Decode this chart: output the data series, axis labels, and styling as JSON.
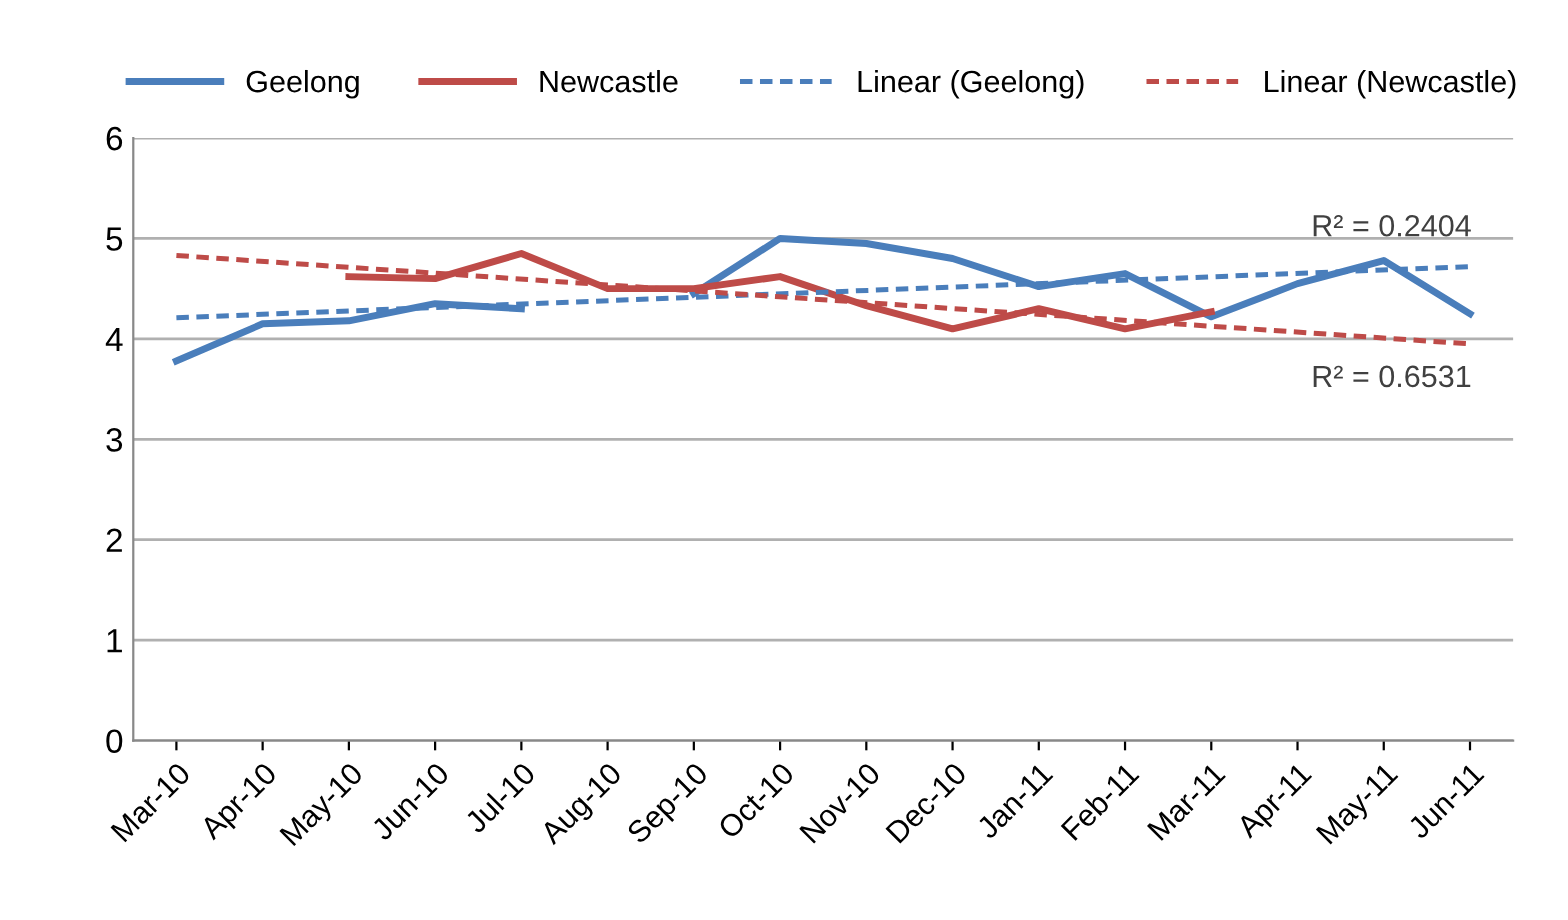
{
  "chart_data": {
    "type": "line",
    "categories": [
      "Mar-10",
      "Apr-10",
      "May-10",
      "Jun-10",
      "Jul-10",
      "Aug-10",
      "Sep-10",
      "Oct-10",
      "Nov-10",
      "Dec-10",
      "Jan-11",
      "Feb-11",
      "Mar-11",
      "Apr-11",
      "May-11",
      "Jun-11"
    ],
    "series": [
      {
        "name": "Geelong",
        "color": "#4a7ebb",
        "values": [
          3.78,
          4.15,
          4.18,
          4.35,
          4.3,
          null,
          4.45,
          5.0,
          4.95,
          4.8,
          4.52,
          4.65,
          4.22,
          4.55,
          4.78,
          4.25
        ]
      },
      {
        "name": "Newcastle",
        "color": "#be4b48",
        "values": [
          null,
          null,
          4.62,
          4.6,
          4.85,
          4.5,
          4.5,
          4.62,
          4.33,
          4.1,
          4.3,
          4.1,
          4.27,
          null,
          null,
          null
        ]
      },
      {
        "name": "Linear (Geelong)",
        "color": "#4a7ebb",
        "line_style": "dashed",
        "x": [
          "Mar-10",
          "Jun-11"
        ],
        "values": [
          4.21,
          4.72
        ]
      },
      {
        "name": "Linear (Newcastle)",
        "color": "#be4b48",
        "line_style": "dashed",
        "x": [
          "Mar-10",
          "Jun-11"
        ],
        "values": [
          4.83,
          3.95
        ]
      }
    ],
    "ylim": [
      0,
      6
    ],
    "yticks": [
      0,
      1,
      2,
      3,
      4,
      5,
      6
    ],
    "grid": "y",
    "legend": "top",
    "marker": "none",
    "line_style": "solid",
    "annotations": [
      "R² = 0.2404",
      "R² = 0.6531"
    ]
  }
}
